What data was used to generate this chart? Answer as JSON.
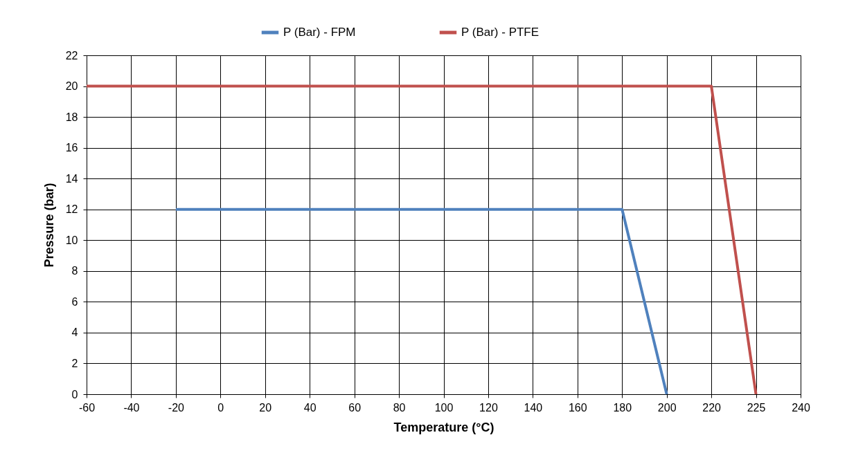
{
  "chart_data": {
    "type": "line",
    "xlabel": "Temperature (°C)",
    "ylabel": "Pressure (bar)",
    "categories": [
      "-60",
      "-40",
      "-20",
      "0",
      "20",
      "40",
      "60",
      "80",
      "100",
      "120",
      "140",
      "160",
      "180",
      "200",
      "220",
      "225",
      "240"
    ],
    "series": [
      {
        "name": "P (Bar) - FPM",
        "color": "#4f81bd",
        "values": [
          null,
          null,
          12,
          12,
          12,
          12,
          12,
          12,
          12,
          12,
          12,
          12,
          12,
          0,
          null,
          null,
          null
        ]
      },
      {
        "name": "P (Bar) - PTFE",
        "color": "#c0504d",
        "values": [
          20,
          20,
          20,
          20,
          20,
          20,
          20,
          20,
          20,
          20,
          20,
          20,
          20,
          20,
          20,
          0,
          null
        ]
      }
    ],
    "ylim": [
      0,
      22
    ],
    "yticks": [
      0,
      2,
      4,
      6,
      8,
      10,
      12,
      14,
      16,
      18,
      20,
      22
    ],
    "grid": true,
    "legend": "top",
    "marker": "none",
    "line_style": "solid"
  }
}
